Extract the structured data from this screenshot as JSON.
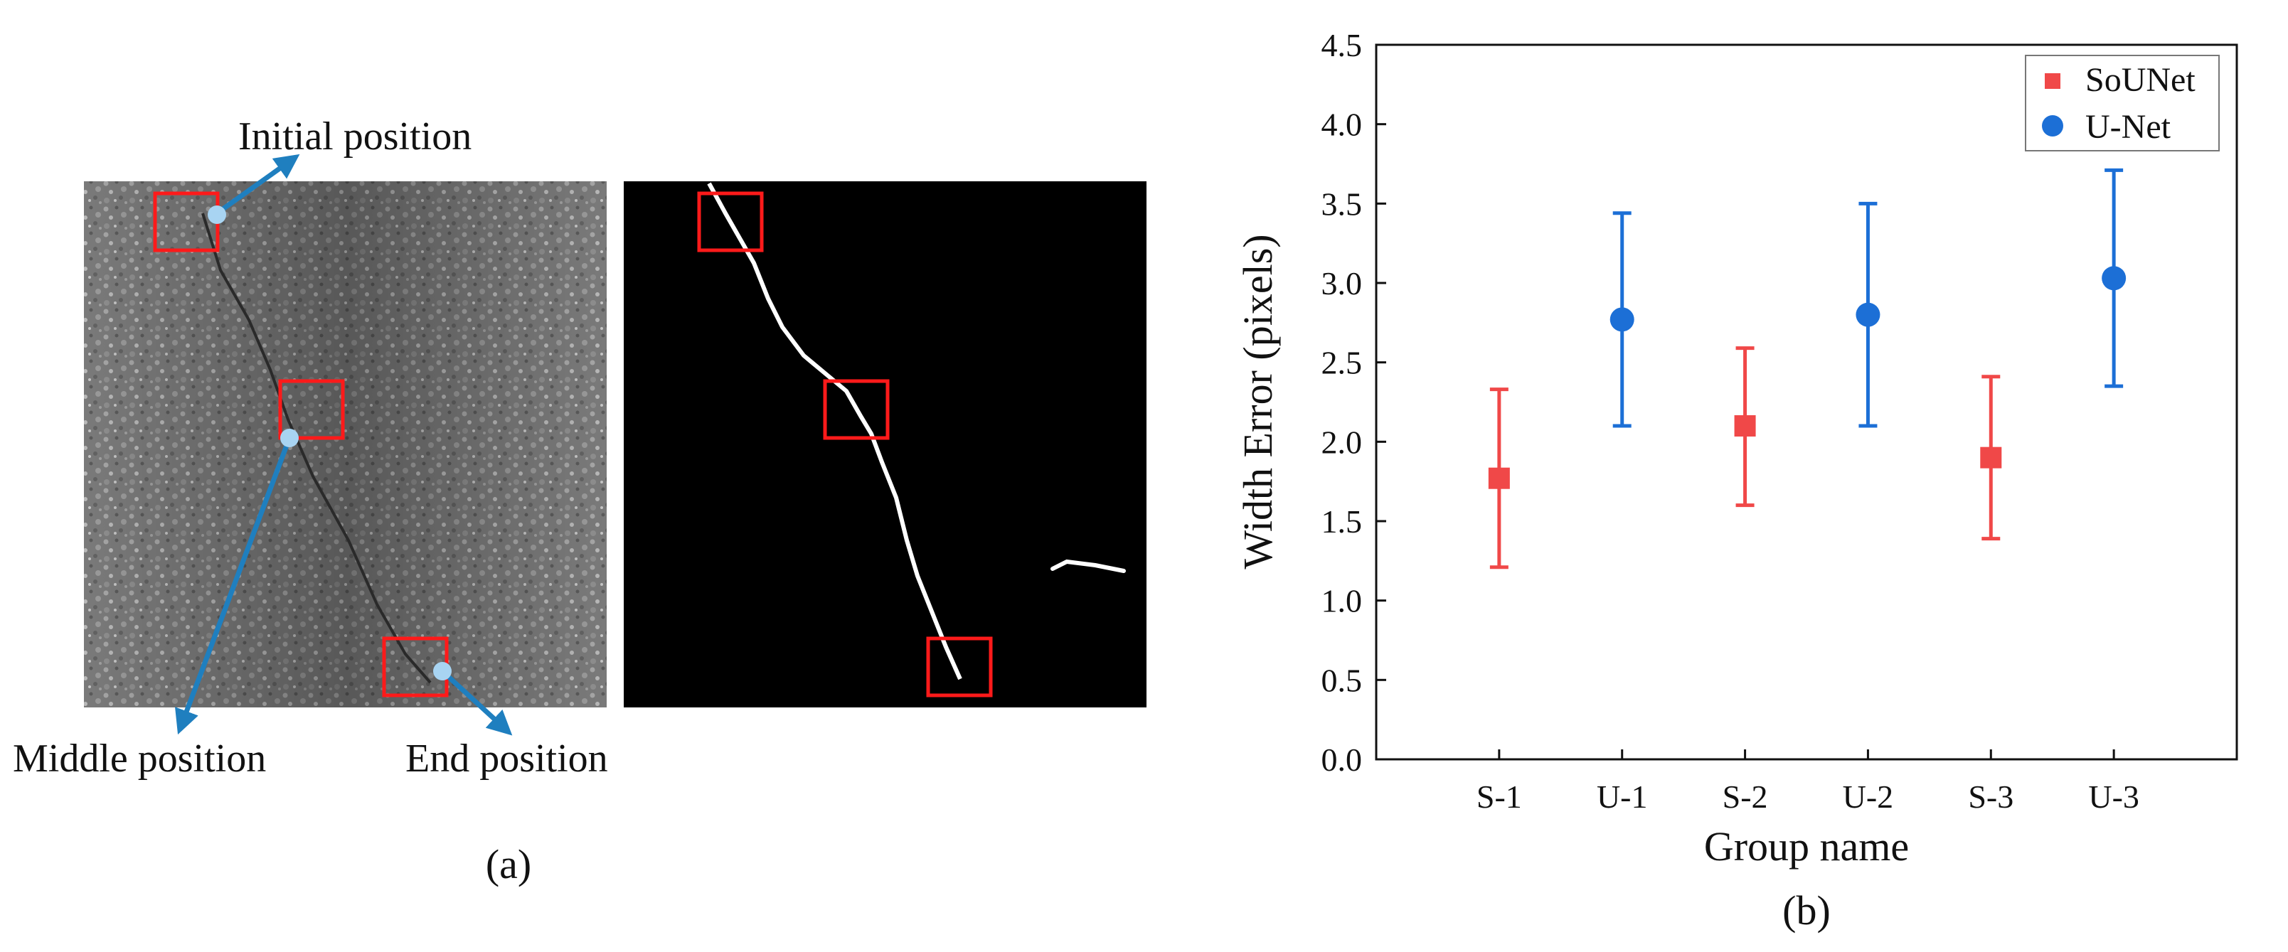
{
  "panel_a": {
    "annotations": {
      "initial": "Initial position",
      "middle": "Middle position",
      "end": "End position"
    },
    "caption": "(a)"
  },
  "panel_b": {
    "caption": "(b)"
  },
  "chart_data": {
    "type": "scatter",
    "title": "",
    "xlabel": "Group name",
    "ylabel": "Width Error (pixels)",
    "categories": [
      "S-1",
      "U-1",
      "S-2",
      "U-2",
      "S-3",
      "U-3"
    ],
    "ylim": [
      0,
      4.5
    ],
    "yticks": [
      "0.0",
      "0.5",
      "1.0",
      "1.5",
      "2.0",
      "2.5",
      "3.0",
      "3.5",
      "4.0",
      "4.5"
    ],
    "grid": false,
    "legend_position": "top-right",
    "series": [
      {
        "name": "SoUNet",
        "color": "#f04848",
        "marker": "square",
        "points": [
          {
            "category": "S-1",
            "y": 1.77,
            "low": 1.21,
            "high": 2.33
          },
          {
            "category": "S-2",
            "y": 2.1,
            "low": 1.6,
            "high": 2.59
          },
          {
            "category": "S-3",
            "y": 1.9,
            "low": 1.39,
            "high": 2.41
          }
        ]
      },
      {
        "name": "U-Net",
        "color": "#1c6fd6",
        "marker": "circle",
        "points": [
          {
            "category": "U-1",
            "y": 2.77,
            "low": 2.1,
            "high": 3.44
          },
          {
            "category": "U-2",
            "y": 2.8,
            "low": 2.1,
            "high": 3.5
          },
          {
            "category": "U-3",
            "y": 3.03,
            "low": 2.35,
            "high": 3.71
          }
        ]
      }
    ]
  }
}
